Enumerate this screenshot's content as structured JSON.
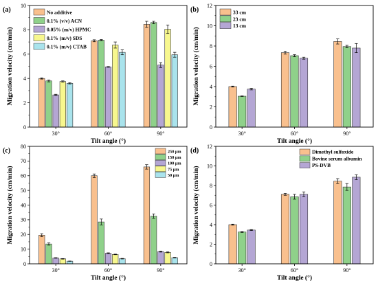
{
  "colors": {
    "orange": "#f9c08e",
    "green": "#8fd18a",
    "purple": "#b4a6d4",
    "yellow": "#f7f78e",
    "cyan": "#a9e3ec",
    "axis": "#000000"
  },
  "chart_data": [
    {
      "type": "bar",
      "panel_label": "(a)",
      "xlabel": "Tilt angle (°)",
      "ylabel": "Migration velocity (cm/min)",
      "ylim": [
        0,
        10
      ],
      "yticks": [
        "0",
        "2",
        "4",
        "6",
        "8",
        "10"
      ],
      "categories": [
        "30°",
        "60°",
        "90°"
      ],
      "legend_position": "top-left",
      "series": [
        {
          "name": "No additive",
          "color": "#f9c08e",
          "values": [
            4.0,
            7.1,
            8.45
          ],
          "errors": [
            0.05,
            0.08,
            0.25
          ]
        },
        {
          "name": "0.1% (v/v) ACN",
          "color": "#8fd18a",
          "values": [
            3.8,
            7.15,
            8.6
          ],
          "errors": [
            0.08,
            0.05,
            0.1
          ]
        },
        {
          "name": "0.05% (m/v) HPMC",
          "color": "#b4a6d4",
          "values": [
            2.65,
            4.95,
            5.1
          ],
          "errors": [
            0.05,
            0.03,
            0.2
          ]
        },
        {
          "name": "0.1% (m/v) SDS",
          "color": "#f7f78e",
          "values": [
            3.75,
            6.75,
            8.05
          ],
          "errors": [
            0.05,
            0.25,
            0.35
          ]
        },
        {
          "name": "0.1% (m/v) CTAB",
          "color": "#a9e3ec",
          "values": [
            3.6,
            6.15,
            5.95
          ],
          "errors": [
            0.05,
            0.2,
            0.2
          ]
        }
      ]
    },
    {
      "type": "bar",
      "panel_label": "(b)",
      "xlabel": "Tilt angle (°)",
      "ylabel": "Migration velocity (cm/min)",
      "ylim": [
        0,
        12
      ],
      "yticks": [
        "0",
        "2",
        "4",
        "6",
        "8",
        "10",
        "12"
      ],
      "categories": [
        "30°",
        "60°",
        "90°"
      ],
      "legend_position": "top-left",
      "series": [
        {
          "name": "33 cm",
          "color": "#f9c08e",
          "values": [
            4.0,
            7.35,
            8.45
          ],
          "errors": [
            0.05,
            0.15,
            0.25
          ]
        },
        {
          "name": "23 cm",
          "color": "#8fd18a",
          "values": [
            3.05,
            7.05,
            7.95
          ],
          "errors": [
            0.03,
            0.1,
            0.12
          ]
        },
        {
          "name": "13 cm",
          "color": "#b4a6d4",
          "values": [
            3.75,
            6.8,
            7.8
          ],
          "errors": [
            0.08,
            0.1,
            0.45
          ]
        }
      ]
    },
    {
      "type": "bar",
      "panel_label": "(c)",
      "xlabel": "Tilt angle (°)",
      "ylabel": "Migration velocity (cm/min)",
      "ylim": [
        0,
        80
      ],
      "yticks": [
        "0",
        "10",
        "20",
        "30",
        "40",
        "50",
        "60",
        "70",
        "80"
      ],
      "categories": [
        "30°",
        "60°",
        "90°"
      ],
      "legend_position": "top-right",
      "series": [
        {
          "name": "250 μm",
          "color": "#f9c08e",
          "values": [
            19.5,
            60.0,
            66.0
          ],
          "errors": [
            1.0,
            1.2,
            1.5
          ]
        },
        {
          "name": "150 μm",
          "color": "#8fd18a",
          "values": [
            13.5,
            28.5,
            32.5
          ],
          "errors": [
            0.8,
            2.0,
            1.5
          ]
        },
        {
          "name": "100 μm",
          "color": "#b4a6d4",
          "values": [
            4.0,
            7.2,
            8.3
          ],
          "errors": [
            0.2,
            0.3,
            0.3
          ]
        },
        {
          "name": "75 μm",
          "color": "#f7f78e",
          "values": [
            3.4,
            6.4,
            7.8
          ],
          "errors": [
            0.2,
            0.2,
            0.3
          ]
        },
        {
          "name": "50 μm",
          "color": "#a9e3ec",
          "values": [
            1.8,
            3.5,
            4.2
          ],
          "errors": [
            0.1,
            0.2,
            0.2
          ]
        }
      ]
    },
    {
      "type": "bar",
      "panel_label": "(d)",
      "xlabel": "Tilt angle (°)",
      "ylabel": "Migration velocity (cm/min)",
      "ylim": [
        0,
        12
      ],
      "yticks": [
        "0",
        "2",
        "4",
        "6",
        "8",
        "10",
        "12"
      ],
      "categories": [
        "30°",
        "60°",
        "90°"
      ],
      "legend_position": "top-left",
      "series": [
        {
          "name": "Dimethyl sulfoxide",
          "color": "#f9c08e",
          "values": [
            4.0,
            7.1,
            8.45
          ],
          "errors": [
            0.05,
            0.1,
            0.25
          ]
        },
        {
          "name": "Bovine serum albumin",
          "color": "#8fd18a",
          "values": [
            3.25,
            6.85,
            7.85
          ],
          "errors": [
            0.05,
            0.25,
            0.35
          ]
        },
        {
          "name": "PS-DVB",
          "color": "#b4a6d4",
          "values": [
            3.45,
            7.1,
            8.85
          ],
          "errors": [
            0.05,
            0.25,
            0.25
          ]
        }
      ]
    }
  ]
}
